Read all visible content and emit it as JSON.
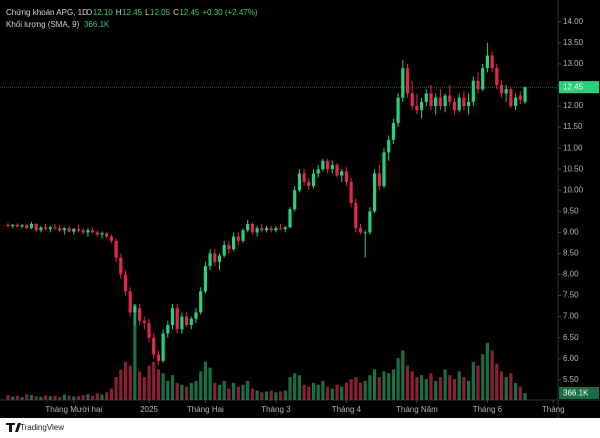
{
  "chart_data": {
    "type": "candlestick",
    "title": "Chứng khoán APG, 1D",
    "ohlc_labels": [
      "O",
      "H",
      "L",
      "C"
    ],
    "ohlc_values": [
      "12.10",
      "12.45",
      "12.05",
      "12.45"
    ],
    "change": "+0.30 (+2.47%)",
    "volume_title": "Khối lượng (SMA, 9)",
    "volume_label": "366.1K",
    "up_color": "#26d07c",
    "down_color": "#e0294a",
    "volume_up_color": "#1a6e45",
    "volume_down_color": "#8a2035",
    "candles": [
      [
        9.18,
        9.22,
        9.12,
        9.15
      ],
      [
        9.15,
        9.2,
        9.1,
        9.18
      ],
      [
        9.18,
        9.22,
        9.12,
        9.14
      ],
      [
        9.14,
        9.2,
        9.1,
        9.17
      ],
      [
        9.17,
        9.2,
        9.08,
        9.1
      ],
      [
        9.1,
        9.25,
        9.08,
        9.2
      ],
      [
        9.2,
        9.22,
        9.0,
        9.05
      ],
      [
        9.05,
        9.15,
        9.0,
        9.12
      ],
      [
        9.12,
        9.2,
        9.05,
        9.08
      ],
      [
        9.08,
        9.15,
        9.0,
        9.12
      ],
      [
        9.12,
        9.2,
        9.05,
        9.1
      ],
      [
        9.1,
        9.18,
        9.0,
        9.05
      ],
      [
        9.05,
        9.12,
        8.95,
        9.1
      ],
      [
        9.1,
        9.15,
        9.0,
        9.02
      ],
      [
        9.02,
        9.1,
        8.95,
        9.08
      ],
      [
        9.08,
        9.18,
        9.0,
        9.05
      ],
      [
        9.05,
        9.1,
        8.95,
        9.0
      ],
      [
        9.0,
        9.1,
        8.9,
        9.05
      ],
      [
        9.05,
        9.12,
        8.98,
        9.0
      ],
      [
        9.0,
        9.05,
        8.9,
        8.95
      ],
      [
        8.95,
        9.02,
        8.85,
        8.98
      ],
      [
        8.98,
        9.0,
        8.85,
        8.9
      ],
      [
        8.9,
        8.95,
        8.75,
        8.8
      ],
      [
        8.8,
        8.85,
        8.3,
        8.4
      ],
      [
        8.4,
        8.5,
        7.9,
        8.0
      ],
      [
        8.0,
        8.1,
        7.5,
        7.6
      ],
      [
        7.6,
        7.7,
        7.0,
        7.1
      ],
      [
        7.1,
        7.3,
        6.8,
        7.25
      ],
      [
        7.2,
        7.3,
        6.8,
        6.9
      ],
      [
        6.9,
        7.0,
        6.7,
        6.85
      ],
      [
        6.85,
        6.95,
        6.4,
        6.5
      ],
      [
        6.5,
        6.6,
        6.0,
        6.1
      ],
      [
        6.1,
        6.2,
        5.85,
        5.95
      ],
      [
        5.95,
        6.7,
        5.9,
        6.6
      ],
      [
        6.6,
        6.9,
        6.5,
        6.8
      ],
      [
        6.8,
        7.3,
        6.7,
        7.2
      ],
      [
        7.2,
        7.3,
        6.6,
        6.7
      ],
      [
        6.7,
        7.1,
        6.6,
        7.0
      ],
      [
        7.0,
        7.1,
        6.75,
        6.8
      ],
      [
        6.8,
        7.0,
        6.7,
        6.95
      ],
      [
        6.95,
        7.2,
        6.85,
        7.1
      ],
      [
        7.1,
        7.7,
        7.05,
        7.6
      ],
      [
        7.6,
        8.3,
        7.55,
        8.2
      ],
      [
        8.2,
        8.6,
        8.1,
        8.5
      ],
      [
        8.5,
        8.6,
        8.2,
        8.3
      ],
      [
        8.3,
        8.5,
        8.1,
        8.45
      ],
      [
        8.45,
        8.8,
        8.4,
        8.7
      ],
      [
        8.7,
        8.8,
        8.5,
        8.6
      ],
      [
        8.6,
        9.0,
        8.55,
        8.9
      ],
      [
        8.9,
        9.0,
        8.7,
        8.8
      ],
      [
        8.8,
        9.1,
        8.75,
        9.05
      ],
      [
        9.05,
        9.3,
        9.0,
        9.2
      ],
      [
        9.2,
        9.25,
        8.95,
        9.0
      ],
      [
        9.0,
        9.15,
        8.9,
        9.1
      ],
      [
        9.1,
        9.2,
        9.0,
        9.05
      ],
      [
        9.05,
        9.15,
        9.0,
        9.1
      ],
      [
        9.1,
        9.15,
        9.0,
        9.05
      ],
      [
        9.05,
        9.15,
        9.0,
        9.1
      ],
      [
        9.1,
        9.2,
        9.05,
        9.08
      ],
      [
        9.08,
        9.15,
        9.0,
        9.12
      ],
      [
        9.12,
        9.6,
        9.1,
        9.55
      ],
      [
        9.55,
        10.1,
        9.5,
        10.0
      ],
      [
        10.0,
        10.5,
        9.95,
        10.4
      ],
      [
        10.4,
        10.5,
        10.1,
        10.2
      ],
      [
        10.2,
        10.3,
        10.0,
        10.1
      ],
      [
        10.1,
        10.5,
        10.05,
        10.4
      ],
      [
        10.4,
        10.6,
        10.3,
        10.5
      ],
      [
        10.5,
        10.75,
        10.45,
        10.7
      ],
      [
        10.7,
        10.75,
        10.4,
        10.5
      ],
      [
        10.5,
        10.7,
        10.4,
        10.6
      ],
      [
        10.6,
        10.65,
        10.3,
        10.35
      ],
      [
        10.35,
        10.5,
        10.2,
        10.45
      ],
      [
        10.45,
        10.55,
        10.1,
        10.2
      ],
      [
        10.2,
        10.3,
        9.6,
        9.7
      ],
      [
        9.7,
        9.8,
        9.0,
        9.1
      ],
      [
        9.1,
        9.2,
        8.95,
        9.0
      ],
      [
        9.0,
        9.05,
        8.4,
        9.0
      ],
      [
        9.0,
        9.6,
        8.95,
        9.5
      ],
      [
        9.5,
        10.5,
        9.45,
        10.4
      ],
      [
        10.4,
        10.6,
        10.0,
        10.1
      ],
      [
        10.1,
        11.0,
        10.05,
        10.9
      ],
      [
        10.9,
        11.3,
        10.7,
        11.2
      ],
      [
        11.2,
        11.7,
        11.1,
        11.6
      ],
      [
        11.6,
        12.3,
        11.5,
        12.2
      ],
      [
        12.2,
        13.1,
        12.1,
        12.9
      ],
      [
        12.9,
        13.0,
        12.2,
        12.3
      ],
      [
        12.3,
        12.6,
        11.9,
        12.0
      ],
      [
        12.0,
        12.3,
        11.8,
        11.9
      ],
      [
        11.9,
        12.2,
        11.7,
        12.1
      ],
      [
        12.1,
        12.4,
        12.0,
        12.3
      ],
      [
        12.3,
        12.5,
        11.9,
        12.0
      ],
      [
        12.0,
        12.3,
        11.8,
        12.2
      ],
      [
        12.2,
        12.4,
        11.9,
        12.0
      ],
      [
        12.0,
        12.3,
        11.85,
        12.25
      ],
      [
        12.25,
        12.5,
        12.0,
        12.1
      ],
      [
        12.1,
        12.2,
        11.8,
        11.9
      ],
      [
        11.9,
        12.3,
        11.85,
        12.2
      ],
      [
        12.2,
        12.35,
        11.9,
        12.0
      ],
      [
        12.0,
        12.3,
        11.8,
        12.1
      ],
      [
        12.1,
        12.7,
        12.0,
        12.6
      ],
      [
        12.6,
        12.8,
        12.3,
        12.4
      ],
      [
        12.4,
        13.0,
        12.35,
        12.9
      ],
      [
        12.9,
        13.5,
        12.8,
        13.2
      ],
      [
        13.2,
        13.3,
        12.8,
        12.9
      ],
      [
        12.9,
        13.0,
        12.4,
        12.5
      ],
      [
        12.5,
        12.6,
        12.2,
        12.3
      ],
      [
        12.3,
        12.5,
        12.1,
        12.4
      ],
      [
        12.4,
        12.45,
        11.95,
        12.0
      ],
      [
        12.0,
        12.3,
        11.9,
        12.2
      ],
      [
        12.25,
        12.35,
        12.05,
        12.15
      ],
      [
        12.1,
        12.45,
        12.05,
        12.45
      ]
    ],
    "volumes": [
      250000,
      180000,
      220000,
      150000,
      300000,
      260000,
      200000,
      170000,
      240000,
      190000,
      210000,
      160000,
      280000,
      230000,
      180000,
      200000,
      260000,
      300000,
      220000,
      350000,
      280000,
      400000,
      600000,
      1200000,
      1600000,
      2000000,
      1800000,
      5000000,
      1500000,
      1200000,
      1800000,
      2000000,
      1600000,
      1400000,
      1000000,
      1300000,
      900000,
      800000,
      700000,
      900000,
      1000000,
      1500000,
      2000000,
      1700000,
      900000,
      800000,
      1000000,
      600000,
      900000,
      700000,
      800000,
      1000000,
      600000,
      500000,
      400000,
      450000,
      500000,
      400000,
      450000,
      500000,
      1200000,
      1400000,
      1300000,
      800000,
      700000,
      900000,
      800000,
      1000000,
      700000,
      600000,
      800000,
      700000,
      900000,
      1100000,
      1200000,
      900000,
      1000000,
      1300000,
      1600000,
      1200000,
      1500000,
      1400000,
      1600000,
      2200000,
      2600000,
      1800000,
      1500000,
      1200000,
      1300000,
      1100000,
      1400000,
      1000000,
      1200000,
      1600000,
      1300000,
      1100000,
      1500000,
      1200000,
      1000000,
      2000000,
      1800000,
      2400000,
      3000000,
      2600000,
      1900000,
      1500000,
      1200000,
      1400000,
      900000,
      700000,
      366100
    ],
    "ylim": [
      5.02,
      14.4
    ],
    "yticks": [
      {
        "value": 5.5,
        "label": "5.50"
      },
      {
        "value": 6,
        "label": "6.00"
      },
      {
        "value": 6.5,
        "label": "6.50"
      },
      {
        "value": 7,
        "label": "7.00"
      },
      {
        "value": 7.5,
        "label": "7.50"
      },
      {
        "value": 8,
        "label": "8.00"
      },
      {
        "value": 8.5,
        "label": "8.50"
      },
      {
        "value": 9,
        "label": "9.00"
      },
      {
        "value": 9.5,
        "label": "9.50"
      },
      {
        "value": 10,
        "label": "10.00"
      },
      {
        "value": 10.5,
        "label": "10.50"
      },
      {
        "value": 11,
        "label": "11.00"
      },
      {
        "value": 11.5,
        "label": "11.50"
      },
      {
        "value": 12,
        "label": "12.00"
      },
      {
        "value": 12.5,
        "label": "12.50"
      },
      {
        "value": 13,
        "label": "13.00"
      },
      {
        "value": 13.5,
        "label": "13.50"
      },
      {
        "value": 14,
        "label": "14.00"
      }
    ],
    "vlim": [
      0,
      20700000
    ],
    "xlim": [
      -1.7,
      117.02
    ],
    "xticks": [
      {
        "value": 14,
        "label": "Tháng Mười hai"
      },
      {
        "value": 30,
        "label": "2025"
      },
      {
        "value": 42,
        "label": "Tháng Hai"
      },
      {
        "value": 57,
        "label": "Tháng 3"
      },
      {
        "value": 72,
        "label": "Tháng 4"
      },
      {
        "value": 87,
        "label": "Tháng Năm"
      },
      {
        "value": 102,
        "label": "Tháng 6"
      },
      {
        "value": 116,
        "label": "Tháng"
      }
    ]
  },
  "footer": {
    "brand": "TradingView"
  }
}
